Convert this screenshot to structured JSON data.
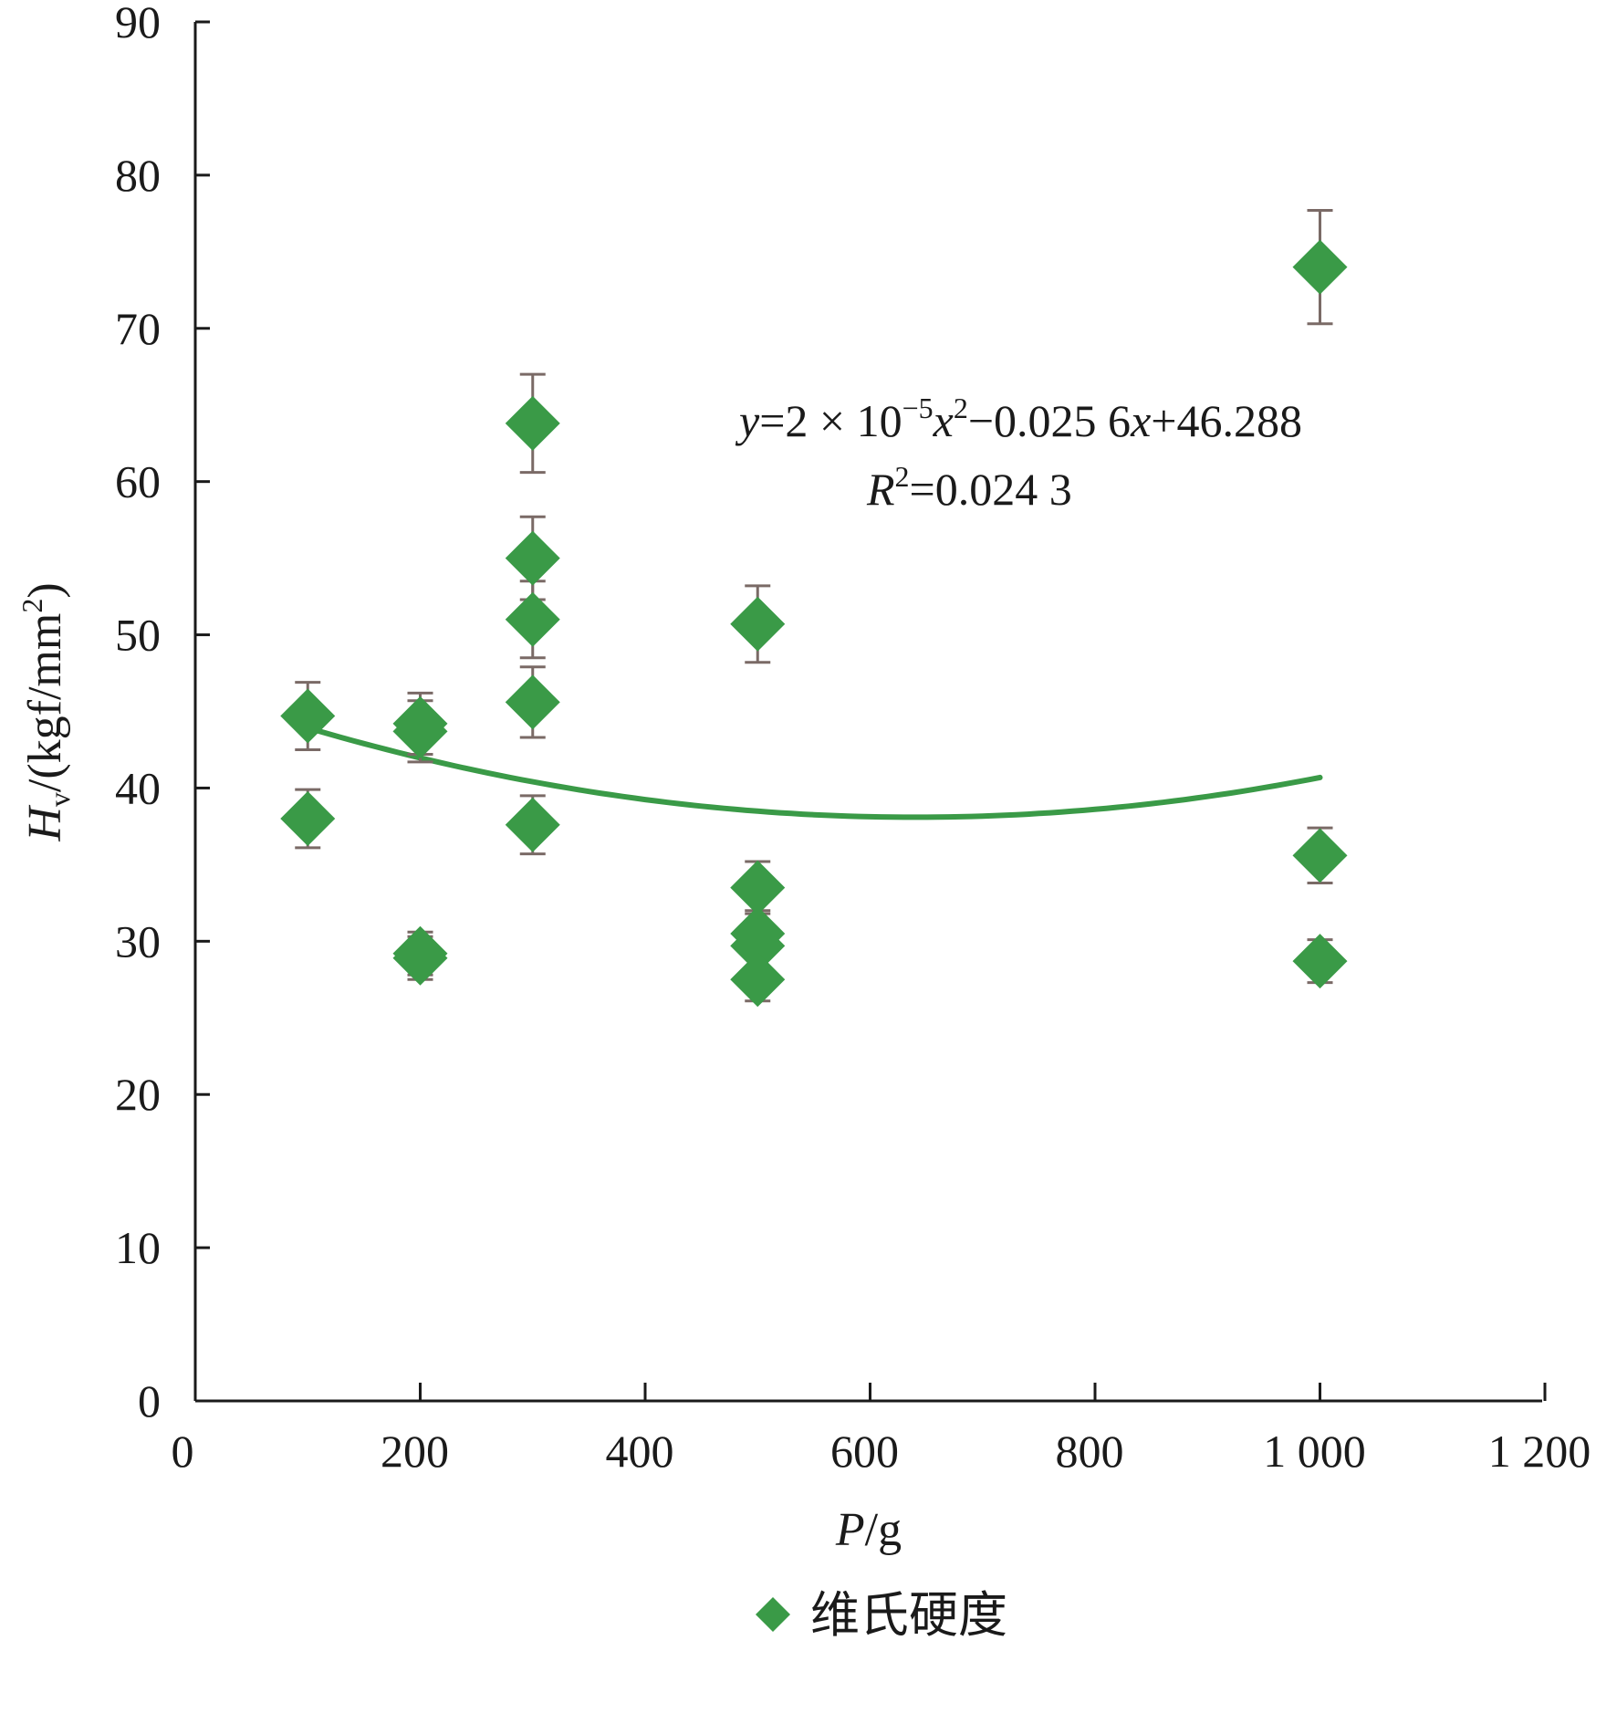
{
  "chart_data": {
    "type": "scatter",
    "title": "",
    "xlabel": {
      "var": "P",
      "unit": "/g"
    },
    "ylabel": {
      "var": "H",
      "sub": "v",
      "unit": "/(kgf/mm",
      "sup": "2",
      "close": ")"
    },
    "xlim": [
      0,
      1200
    ],
    "ylim": [
      0,
      90
    ],
    "xticks": [
      0,
      200,
      400,
      600,
      800,
      1000,
      1200
    ],
    "xtick_labels": [
      "0",
      "200",
      "400",
      "600",
      "800",
      "1 000",
      "1 200"
    ],
    "yticks": [
      0,
      10,
      20,
      30,
      40,
      50,
      60,
      70,
      80,
      90
    ],
    "ytick_labels": [
      "0",
      "10",
      "20",
      "30",
      "40",
      "50",
      "60",
      "70",
      "80",
      "90"
    ],
    "grid": false,
    "series": [
      {
        "name": "维氏硬度",
        "color": "#3a9a47",
        "marker": "diamond",
        "errorbar_color": "#7a6a66",
        "points": [
          {
            "x": 100,
            "y": 44.7,
            "err": 2.2
          },
          {
            "x": 100,
            "y": 38.0,
            "err": 1.9
          },
          {
            "x": 200,
            "y": 44.2,
            "err": 2.0
          },
          {
            "x": 200,
            "y": 43.7,
            "err": 2.0
          },
          {
            "x": 200,
            "y": 29.2,
            "err": 1.4
          },
          {
            "x": 200,
            "y": 28.9,
            "err": 1.4
          },
          {
            "x": 300,
            "y": 63.8,
            "err": 3.2
          },
          {
            "x": 300,
            "y": 55.0,
            "err": 2.7
          },
          {
            "x": 300,
            "y": 51.0,
            "err": 2.5
          },
          {
            "x": 300,
            "y": 45.6,
            "err": 2.3
          },
          {
            "x": 300,
            "y": 37.6,
            "err": 1.9
          },
          {
            "x": 500,
            "y": 50.7,
            "err": 2.5
          },
          {
            "x": 500,
            "y": 33.5,
            "err": 1.7
          },
          {
            "x": 500,
            "y": 30.5,
            "err": 1.5
          },
          {
            "x": 500,
            "y": 29.7,
            "err": 1.5
          },
          {
            "x": 500,
            "y": 27.5,
            "err": 1.4
          },
          {
            "x": 1000,
            "y": 74.0,
            "err": 3.7
          },
          {
            "x": 1000,
            "y": 35.6,
            "err": 1.8
          },
          {
            "x": 1000,
            "y": 28.7,
            "err": 1.4
          }
        ]
      }
    ],
    "trendline": {
      "type": "polynomial-2",
      "a": 2e-05,
      "b": -0.0256,
      "c": 46.288,
      "x_range": [
        100,
        1000
      ],
      "color": "#3a9a47"
    },
    "annotation": {
      "equation": {
        "y": "y",
        "eq1": "=2 × 10",
        "exp": "−5",
        "x": "x",
        "x_sup": "2",
        "rest1": "−0.025 6",
        "x2": "x",
        "rest2": "+46.288"
      },
      "r2": {
        "R": "R",
        "sup": "2",
        "value": "=0.024 3"
      }
    },
    "legend": {
      "label": "维氏硬度",
      "position": "bottom-center"
    }
  }
}
